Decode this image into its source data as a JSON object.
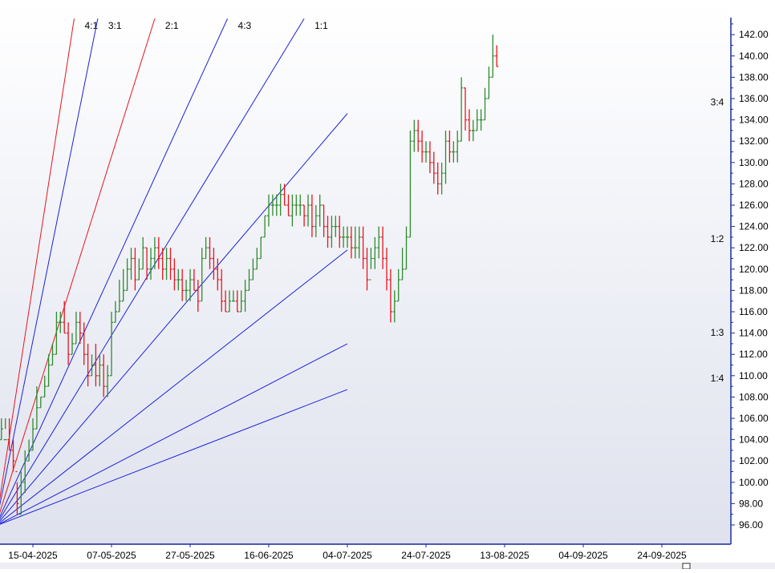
{
  "colors": {
    "background_top": "#ffffff",
    "background_bottom": "#dfe2ee",
    "up_bar": "#2e8b2e",
    "down_bar": "#e8141e",
    "fan_blue": "#1c22d8",
    "fan_red": "#e8141e",
    "axis": "#1a2a9a",
    "pivot": "#e00000"
  },
  "chart_data": {
    "type": "ohlc-bar",
    "title": "",
    "xlabel": "",
    "ylabel": "",
    "ylim": [
      94,
      143.5
    ],
    "y_ticks": [
      "96.00",
      "98.00",
      "100.00",
      "102.00",
      "104.00",
      "106.00",
      "108.00",
      "110.00",
      "112.00",
      "114.00",
      "116.00",
      "118.00",
      "120.00",
      "122.00",
      "124.00",
      "126.00",
      "128.00",
      "130.00",
      "132.00",
      "134.00",
      "136.00",
      "138.00",
      "140.00",
      "142.00"
    ],
    "x_ticks": [
      "15-04-2025",
      "07-05-2025",
      "27-05-2025",
      "16-06-2025",
      "04-07-2025",
      "24-07-2025",
      "13-08-2025",
      "04-09-2025",
      "24-09-2025"
    ],
    "x_tick_bar_index": [
      10,
      30,
      50,
      70,
      90,
      110,
      130,
      150,
      170
    ],
    "bars": [
      [
        104,
        101,
        105,
        102
      ],
      [
        102,
        103,
        106,
        104
      ],
      [
        104,
        104,
        106,
        105
      ],
      [
        104,
        105,
        106,
        104
      ],
      [
        104,
        103,
        106,
        103
      ],
      [
        103,
        101,
        104,
        102
      ],
      [
        101,
        97,
        100,
        98
      ],
      [
        97,
        97,
        101,
        100
      ],
      [
        100,
        99,
        103,
        102
      ],
      [
        102,
        102,
        104,
        103
      ],
      [
        103,
        103,
        106,
        105
      ],
      [
        105,
        105,
        109,
        107
      ],
      [
        107,
        107,
        108,
        108
      ],
      [
        108,
        108,
        110,
        109
      ],
      [
        109,
        109,
        112,
        111
      ],
      [
        111,
        111,
        113,
        112
      ],
      [
        112,
        112,
        116,
        115
      ],
      [
        115,
        114,
        116,
        115
      ],
      [
        115,
        114,
        117,
        114
      ],
      [
        114,
        111,
        115,
        112
      ],
      [
        112,
        112,
        114,
        113
      ],
      [
        113,
        113,
        116,
        115
      ],
      [
        115,
        113,
        116,
        114
      ],
      [
        114,
        111,
        115,
        112
      ],
      [
        112,
        109,
        113,
        110
      ],
      [
        110,
        110,
        112,
        111
      ],
      [
        111,
        109,
        113,
        110
      ],
      [
        110,
        109,
        112,
        111
      ],
      [
        111,
        108,
        112,
        109
      ],
      [
        109,
        108,
        111,
        110
      ],
      [
        110,
        110,
        116,
        115
      ],
      [
        115,
        115,
        117,
        116
      ],
      [
        116,
        116,
        119,
        117
      ],
      [
        117,
        117,
        120,
        118
      ],
      [
        118,
        118,
        121,
        120
      ],
      [
        120,
        119,
        122,
        121
      ],
      [
        121,
        118,
        122,
        119
      ],
      [
        119,
        119,
        121,
        120
      ],
      [
        120,
        120,
        123,
        122
      ],
      [
        122,
        119,
        122,
        120
      ],
      [
        120,
        119,
        122,
        121
      ],
      [
        121,
        120,
        123,
        122
      ],
      [
        122,
        120,
        123,
        121
      ],
      [
        121,
        119,
        122,
        120
      ],
      [
        120,
        119,
        122,
        121
      ],
      [
        121,
        119,
        122,
        120
      ],
      [
        120,
        118,
        121,
        119
      ],
      [
        119,
        118,
        120,
        119
      ],
      [
        119,
        117,
        120,
        118
      ],
      [
        118,
        117,
        119,
        118
      ],
      [
        118,
        117,
        120,
        119
      ],
      [
        119,
        118,
        120,
        118
      ],
      [
        118,
        116,
        119,
        117
      ],
      [
        117,
        117,
        122,
        121
      ],
      [
        121,
        121,
        123,
        122
      ],
      [
        122,
        120,
        123,
        121
      ],
      [
        121,
        119,
        122,
        120
      ],
      [
        120,
        118,
        121,
        119
      ],
      [
        119,
        116,
        120,
        117
      ],
      [
        117,
        116,
        118,
        116
      ],
      [
        116,
        116,
        118,
        117
      ],
      [
        117,
        117,
        118,
        117
      ],
      [
        117,
        116,
        118,
        116
      ],
      [
        116,
        116,
        118,
        117
      ],
      [
        117,
        116,
        119,
        118
      ],
      [
        118,
        118,
        120,
        119
      ],
      [
        119,
        119,
        121,
        120
      ],
      [
        120,
        120,
        122,
        121
      ],
      [
        121,
        121,
        123,
        123
      ],
      [
        123,
        123,
        125,
        125
      ],
      [
        125,
        124,
        127,
        126
      ],
      [
        126,
        125,
        127,
        126
      ],
      [
        126,
        125,
        127,
        126
      ],
      [
        126,
        125,
        128,
        127
      ],
      [
        127,
        126,
        128,
        126
      ],
      [
        126,
        125,
        127,
        125
      ],
      [
        125,
        124,
        127,
        126
      ],
      [
        126,
        125,
        127,
        126
      ],
      [
        126,
        125,
        127,
        126
      ],
      [
        126,
        124,
        126,
        125
      ],
      [
        125,
        124,
        127,
        126
      ],
      [
        126,
        123,
        127,
        124
      ],
      [
        124,
        123,
        126,
        125
      ],
      [
        125,
        124,
        127,
        126
      ],
      [
        126,
        123,
        126,
        124
      ],
      [
        124,
        122,
        125,
        123
      ],
      [
        123,
        122,
        125,
        124
      ],
      [
        124,
        123,
        125,
        124
      ],
      [
        124,
        122,
        125,
        123
      ],
      [
        123,
        122,
        124,
        123
      ],
      [
        123,
        122,
        124,
        123
      ],
      [
        123,
        121,
        124,
        122
      ],
      [
        122,
        121,
        124,
        122
      ],
      [
        122,
        121,
        124,
        123
      ],
      [
        123,
        120,
        124,
        121
      ],
      [
        121,
        118,
        122,
        119
      ],
      [
        119,
        120,
        122,
        121
      ],
      [
        121,
        120,
        123,
        122
      ],
      [
        122,
        121,
        124,
        123
      ],
      [
        123,
        120,
        124,
        121
      ],
      [
        121,
        118,
        122,
        119
      ],
      [
        119,
        115,
        120,
        116
      ],
      [
        116,
        115,
        118,
        117
      ],
      [
        117,
        117,
        120,
        119
      ],
      [
        119,
        119,
        122,
        120
      ],
      [
        120,
        120,
        124,
        123
      ],
      [
        123,
        123,
        133,
        132
      ],
      [
        132,
        131,
        134,
        133
      ],
      [
        133,
        131,
        134,
        132
      ],
      [
        132,
        130,
        133,
        131
      ],
      [
        131,
        130,
        132,
        131
      ],
      [
        131,
        129,
        132,
        130
      ],
      [
        130,
        128,
        131,
        129
      ],
      [
        129,
        127,
        130,
        128
      ],
      [
        128,
        127,
        130,
        129
      ],
      [
        129,
        128,
        133,
        132
      ],
      [
        132,
        130,
        133,
        131
      ],
      [
        131,
        130,
        132,
        131
      ],
      [
        131,
        130,
        133,
        132
      ],
      [
        132,
        132,
        138,
        137
      ],
      [
        137,
        133,
        137,
        134
      ],
      [
        134,
        132,
        135,
        133
      ],
      [
        133,
        132,
        134,
        133
      ],
      [
        133,
        133,
        135,
        134
      ],
      [
        134,
        133,
        135,
        134
      ],
      [
        134,
        134,
        137,
        136
      ],
      [
        136,
        136,
        139,
        138
      ],
      [
        138,
        138,
        142,
        140
      ],
      [
        140,
        139,
        141,
        139
      ]
    ],
    "fan": {
      "origin_bar": 0.5,
      "origin_price": 95.9,
      "lines": [
        {
          "label": "4:1",
          "color": "red",
          "end_bar": 20.5,
          "end_price": 143.5
        },
        {
          "label": "3:1",
          "color": "blue",
          "end_bar": 26.5,
          "end_price": 143.5
        },
        {
          "label": "2:1",
          "color": "red",
          "end_bar": 41,
          "end_price": 143.5
        },
        {
          "label": "4:3",
          "color": "blue",
          "end_bar": 59.5,
          "end_price": 143.5
        },
        {
          "label": "1:1",
          "color": "blue",
          "end_bar": 79,
          "end_price": 143.5
        },
        {
          "label": "3:4",
          "color": "blue",
          "end_bar": 90,
          "end_price": 134.6
        },
        {
          "label": "1:2",
          "color": "blue",
          "end_bar": 90,
          "end_price": 121.8
        },
        {
          "label": "1:3",
          "color": "blue",
          "end_bar": 90,
          "end_price": 113.0
        },
        {
          "label": "1:4",
          "color": "blue",
          "end_bar": 90,
          "end_price": 108.7
        }
      ]
    }
  }
}
